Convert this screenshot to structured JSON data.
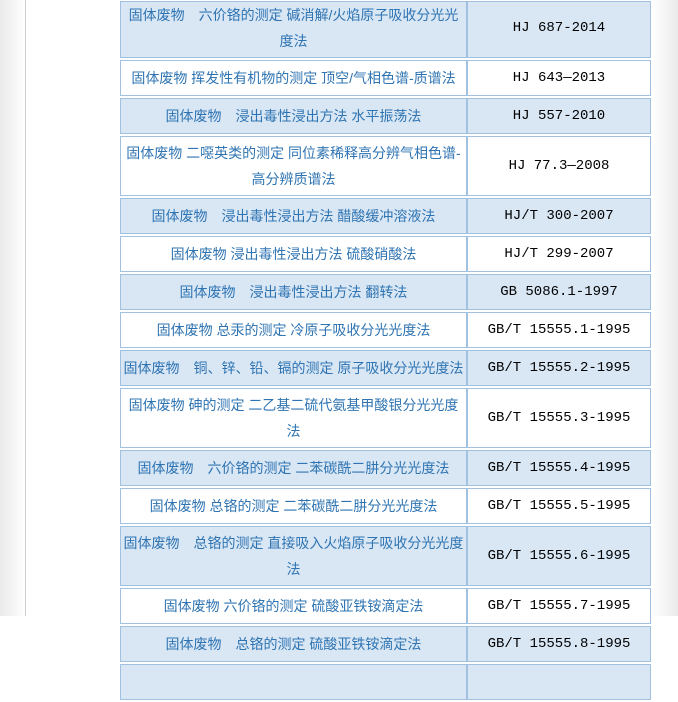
{
  "colors": {
    "highlight_row": "#d9e7f5",
    "row_border": "#a2c1e0",
    "method_text": "#2f74b2",
    "code_text": "#000000",
    "page_shadow": "#eaeaea"
  },
  "table": {
    "rows": [
      {
        "method": "固体废物　六价铬的测定 碱消解/火焰原子吸收分光光度法",
        "code": "HJ 687-2014",
        "highlighted": true
      },
      {
        "method": "固体废物 挥发性有机物的测定 顶空/气相色谱-质谱法",
        "code": "HJ 643—2013",
        "highlighted": false
      },
      {
        "method": "固体废物　浸出毒性浸出方法 水平振荡法",
        "code": "HJ 557-2010",
        "highlighted": true
      },
      {
        "method": "固体废物 二噁英类的测定 同位素稀释高分辨气相色谱-高分辨质谱法",
        "code": "HJ 77.3—2008",
        "highlighted": false
      },
      {
        "method": "固体废物　浸出毒性浸出方法 醋酸缓冲溶液法",
        "code": "HJ/T 300-2007",
        "highlighted": true
      },
      {
        "method": "固体废物 浸出毒性浸出方法 硫酸硝酸法",
        "code": "HJ/T 299-2007",
        "highlighted": false
      },
      {
        "method": "固体废物　浸出毒性浸出方法 翻转法",
        "code": "GB 5086.1-1997",
        "highlighted": true
      },
      {
        "method": "固体废物 总汞的测定 冷原子吸收分光光度法",
        "code": "GB/T 15555.1-1995",
        "highlighted": false
      },
      {
        "method": "固体废物　铜、锌、铅、镉的测定 原子吸收分光光度法",
        "code": "GB/T 15555.2-1995",
        "highlighted": true
      },
      {
        "method": "固体废物 砷的测定 二乙基二硫代氨基甲酸银分光光度法",
        "code": "GB/T 15555.3-1995",
        "highlighted": false
      },
      {
        "method": "固体废物　六价铬的测定 二苯碳酰二肼分光光度法",
        "code": "GB/T 15555.4-1995",
        "highlighted": true
      },
      {
        "method": "固体废物 总铬的测定 二苯碳酰二肼分光光度法",
        "code": "GB/T 15555.5-1995",
        "highlighted": false
      },
      {
        "method": "固体废物　总铬的测定 直接吸入火焰原子吸收分光光度法",
        "code": "GB/T 15555.6-1995",
        "highlighted": true
      },
      {
        "method": "固体废物 六价铬的测定 硫酸亚铁铵滴定法",
        "code": "GB/T 15555.7-1995",
        "highlighted": false
      },
      {
        "method": "固体废物　总铬的测定 硫酸亚铁铵滴定法",
        "code": "GB/T 15555.8-1995",
        "highlighted": true
      },
      {
        "method": "",
        "code": "",
        "highlighted": true
      }
    ]
  }
}
